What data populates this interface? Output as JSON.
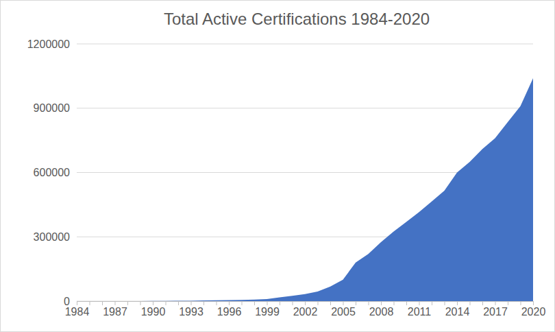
{
  "chart_data": {
    "type": "area",
    "title": "Total Active Certifications 1984-2020",
    "categories": [
      "1984",
      null,
      null,
      "1987",
      null,
      null,
      "1990",
      null,
      null,
      "1993",
      null,
      null,
      "1996",
      null,
      null,
      "1999",
      null,
      null,
      "2002",
      null,
      null,
      "2005",
      null,
      null,
      "2008",
      null,
      null,
      "2011",
      null,
      null,
      "2014",
      null,
      null,
      "2017",
      null,
      null,
      "2020"
    ],
    "values": [
      0,
      0,
      0,
      0,
      0,
      0,
      500,
      1000,
      1500,
      2000,
      3000,
      4000,
      5000,
      6000,
      7000,
      10000,
      18000,
      25000,
      33000,
      45000,
      68000,
      100000,
      180000,
      220000,
      275000,
      325000,
      370000,
      415000,
      465000,
      515000,
      600000,
      650000,
      710000,
      760000,
      835000,
      910000,
      1040000
    ],
    "color": "#4472c4",
    "ylim": [
      0,
      1200000
    ],
    "yticks": [
      0,
      300000,
      600000,
      900000,
      1200000
    ],
    "grid": true
  }
}
